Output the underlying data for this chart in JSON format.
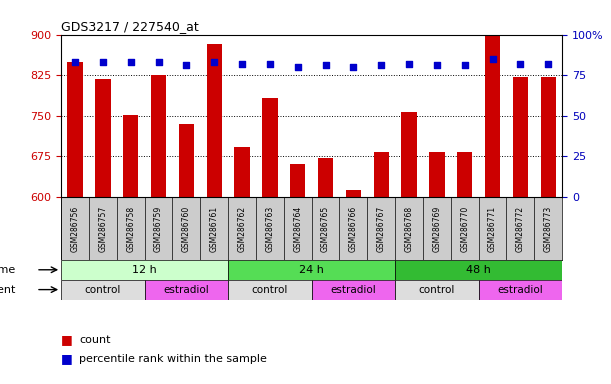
{
  "title": "GDS3217 / 227540_at",
  "samples": [
    "GSM286756",
    "GSM286757",
    "GSM286758",
    "GSM286759",
    "GSM286760",
    "GSM286761",
    "GSM286762",
    "GSM286763",
    "GSM286764",
    "GSM286765",
    "GSM286766",
    "GSM286767",
    "GSM286768",
    "GSM286769",
    "GSM286770",
    "GSM286771",
    "GSM286772",
    "GSM286773"
  ],
  "counts": [
    850,
    818,
    752,
    825,
    735,
    882,
    692,
    783,
    660,
    672,
    612,
    683,
    757,
    682,
    682,
    930,
    822,
    822
  ],
  "percentiles": [
    83,
    83,
    83,
    83,
    81,
    83,
    82,
    82,
    80,
    81,
    80,
    81,
    82,
    81,
    81,
    85,
    82,
    82
  ],
  "ylim_left": [
    600,
    900
  ],
  "ylim_right": [
    0,
    100
  ],
  "yticks_left": [
    600,
    675,
    750,
    825,
    900
  ],
  "yticks_right": [
    0,
    25,
    50,
    75,
    100
  ],
  "bar_color": "#cc0000",
  "dot_color": "#0000cc",
  "grid_color": "#000000",
  "time_groups": [
    {
      "label": "12 h",
      "start": 0,
      "end": 6,
      "color": "#ccffcc"
    },
    {
      "label": "24 h",
      "start": 6,
      "end": 12,
      "color": "#55dd55"
    },
    {
      "label": "48 h",
      "start": 12,
      "end": 18,
      "color": "#33bb33"
    }
  ],
  "agent_groups": [
    {
      "label": "control",
      "start": 0,
      "end": 3,
      "color": "#dddddd"
    },
    {
      "label": "estradiol",
      "start": 3,
      "end": 6,
      "color": "#ee66ee"
    },
    {
      "label": "control",
      "start": 6,
      "end": 9,
      "color": "#dddddd"
    },
    {
      "label": "estradiol",
      "start": 9,
      "end": 12,
      "color": "#ee66ee"
    },
    {
      "label": "control",
      "start": 12,
      "end": 15,
      "color": "#dddddd"
    },
    {
      "label": "estradiol",
      "start": 15,
      "end": 18,
      "color": "#ee66ee"
    }
  ],
  "xtick_bg_color": "#cccccc",
  "legend_count_color": "#cc0000",
  "legend_dot_color": "#0000cc",
  "bg_color": "#ffffff",
  "tick_label_color_left": "#cc0000",
  "tick_label_color_right": "#0000bb",
  "time_label": "time",
  "agent_label": "agent"
}
